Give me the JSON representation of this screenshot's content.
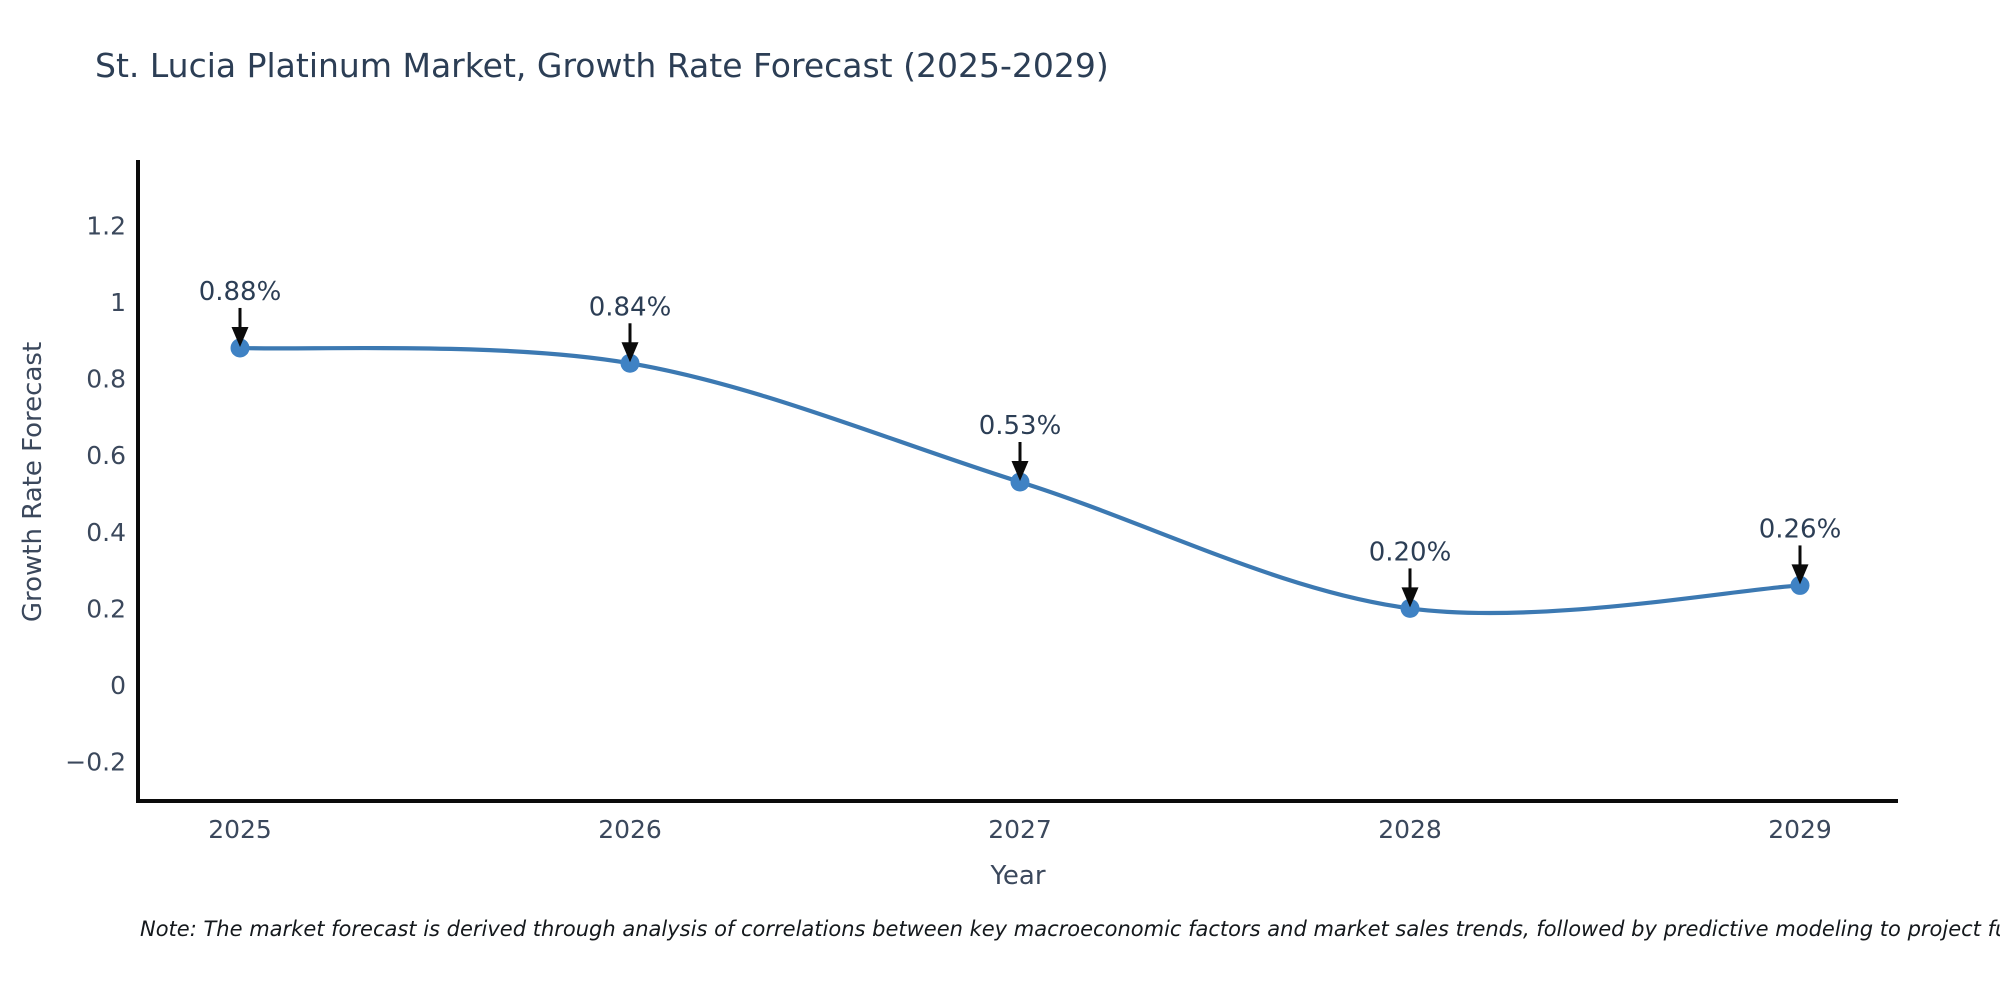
{
  "title": "St. Lucia Platinum Market, Growth Rate Forecast (2025-2029)",
  "note": "Note: The market forecast is derived through analysis of correlations between key macroeconomic factors and market sales trends, followed by predictive modeling to project future sa",
  "chart_data": {
    "type": "line",
    "title": "St. Lucia Platinum Market, Growth Rate Forecast (2025-2029)",
    "xlabel": "Year",
    "ylabel": "Growth Rate Forecast",
    "categories": [
      "2025",
      "2026",
      "2027",
      "2028",
      "2029"
    ],
    "series": [
      {
        "name": "Growth Rate Forecast",
        "values": [
          0.88,
          0.84,
          0.53,
          0.2,
          0.26
        ],
        "point_labels": [
          "0.88%",
          "0.84%",
          "0.53%",
          "0.20%",
          "0.26%"
        ]
      }
    ],
    "line_shape": "spline",
    "markers": true,
    "grid": false,
    "legend_position": "none",
    "ylim": [
      -0.3,
      1.37
    ],
    "yticks": {
      "values": [
        -0.2,
        0,
        0.2,
        0.4,
        0.6,
        0.8,
        1,
        1.2
      ],
      "labels": [
        "−0.2",
        "0",
        "0.2",
        "0.4",
        "0.6",
        "0.8",
        "1",
        "1.2"
      ]
    },
    "colors": {
      "line": "#3c79b2",
      "marker": "#3f82c4",
      "axis": "#0b0b0b",
      "arrow": "#0b0b0b",
      "tick_text": "#3b485c",
      "title_text": "#2c3e55",
      "background": "#ffffff"
    }
  }
}
